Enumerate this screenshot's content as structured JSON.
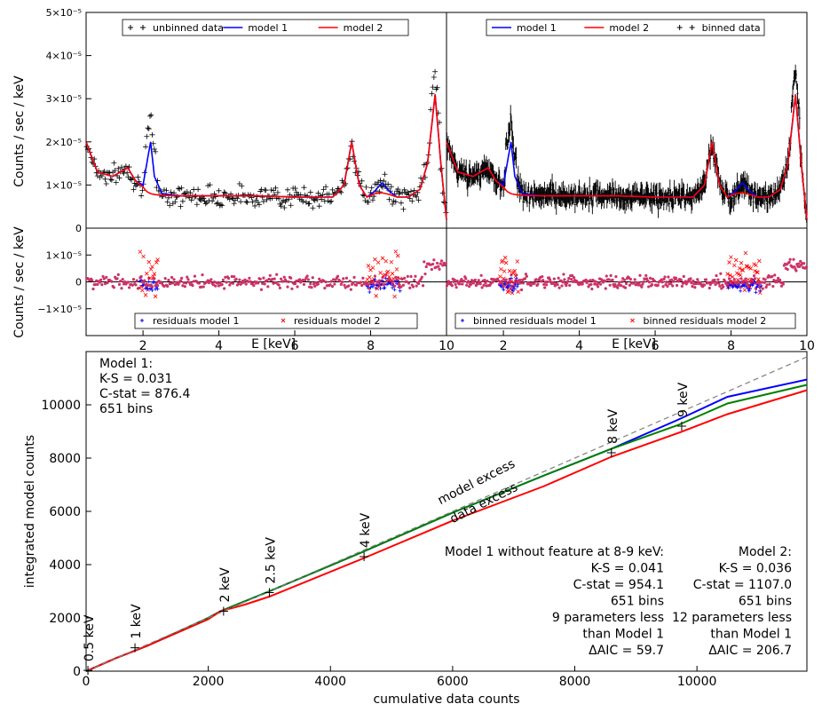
{
  "chart_data": [
    {
      "type": "line",
      "panel": "top-left spectrum (unbinned)",
      "ylabel": "Counts / sec / keV",
      "yticks": [
        "0",
        "1×10⁻⁵",
        "2×10⁻⁵",
        "3×10⁻⁵",
        "4×10⁻⁵",
        "5×10⁻⁵"
      ],
      "ylim": [
        0,
        5e-05
      ],
      "xlim": [
        0.5,
        10
      ],
      "legend": [
        "unbinned data",
        "model 1",
        "model 2"
      ],
      "series": [
        {
          "name": "model 1",
          "color": "#0000ff",
          "x": [
            0.5,
            0.8,
            1.2,
            1.6,
            1.8,
            2.0,
            2.1,
            2.2,
            2.3,
            2.5,
            3,
            4,
            5,
            6,
            7,
            7.3,
            7.5,
            7.7,
            7.9,
            8.1,
            8.3,
            8.5,
            8.7,
            9,
            9.3,
            9.5,
            9.7,
            9.85,
            10
          ],
          "y": [
            2e-05,
            1.3e-05,
            1.2e-05,
            1.4e-05,
            1.1e-05,
            1e-05,
            1.5e-05,
            2e-05,
            1.2e-05,
            8e-06,
            7.5e-06,
            7.5e-06,
            7.5e-06,
            7.2e-06,
            7.2e-06,
            1e-05,
            2e-05,
            1e-05,
            7.2e-06,
            8.5e-06,
            1.05e-05,
            8.5e-06,
            7.2e-06,
            7.2e-06,
            9e-06,
            1.5e-05,
            3.1e-05,
            1.5e-05,
            2e-06
          ]
        },
        {
          "name": "model 2",
          "color": "#ff0000",
          "x": [
            0.5,
            0.8,
            1.2,
            1.6,
            1.8,
            2.0,
            2.1,
            2.2,
            2.3,
            2.5,
            3,
            4,
            5,
            6,
            7,
            7.3,
            7.5,
            7.7,
            7.9,
            8.1,
            8.3,
            8.5,
            8.7,
            9,
            9.3,
            9.5,
            9.7,
            9.85,
            10
          ],
          "y": [
            2e-05,
            1.3e-05,
            1.2e-05,
            1.4e-05,
            1.1e-05,
            9.5e-06,
            8.5e-06,
            8e-06,
            7.8e-06,
            7.6e-06,
            7.5e-06,
            7.5e-06,
            7.5e-06,
            7.2e-06,
            7.2e-06,
            1e-05,
            2e-05,
            1e-05,
            7.2e-06,
            8e-06,
            8.2e-06,
            7.8e-06,
            7.2e-06,
            7.2e-06,
            9e-06,
            1.5e-05,
            3.1e-05,
            1.5e-05,
            2e-06
          ]
        }
      ]
    },
    {
      "type": "line",
      "panel": "top-right spectrum (binned)",
      "xlim": [
        0.5,
        10
      ],
      "legend": [
        "model 1",
        "model 2",
        "binned data"
      ]
    },
    {
      "type": "scatter",
      "panel": "bottom-left residuals",
      "ylabel": "Counts / sec / keV",
      "yticks": [
        "−1×10⁻⁵",
        "0",
        "1×10⁻⁵"
      ],
      "ylim": [
        -2e-05,
        2e-05
      ],
      "xlabel": "E [keV]",
      "xticks": [
        "2",
        "4",
        "6",
        "8",
        "10"
      ],
      "legend": [
        "residuals model 1",
        "residuals model 2"
      ]
    },
    {
      "type": "scatter",
      "panel": "bottom-right residuals (binned)",
      "xlabel": "E [keV]",
      "xticks": [
        "2",
        "4",
        "6",
        "8",
        "10"
      ],
      "legend": [
        "binned residuals model 1",
        "binned residuals model 2"
      ]
    },
    {
      "type": "line",
      "panel": "cumulative counts",
      "xlabel": "cumulative data counts",
      "ylabel": "integrated model counts",
      "xlim": [
        0,
        11800
      ],
      "ylim": [
        0,
        12000
      ],
      "xticks": [
        "0",
        "2000",
        "4000",
        "6000",
        "8000",
        "10000"
      ],
      "yticks": [
        "0",
        "2000",
        "4000",
        "6000",
        "8000",
        "10000"
      ],
      "series": [
        {
          "name": "Model 1",
          "color": "#0000ff",
          "x": [
            0,
            500,
            1000,
            2000,
            2200,
            3000,
            4500,
            6000,
            7500,
            8600,
            9700,
            10500,
            11800
          ],
          "y": [
            0,
            500,
            950,
            2000,
            2250,
            3000,
            4450,
            5950,
            7350,
            8350,
            9450,
            10300,
            10950
          ]
        },
        {
          "name": "Model 1 without feature at 8-9 keV",
          "color": "#008000",
          "x": [
            0,
            500,
            1000,
            2000,
            2200,
            3000,
            4500,
            6000,
            7500,
            8600,
            9700,
            10500,
            11800
          ],
          "y": [
            0,
            500,
            950,
            2000,
            2250,
            3000,
            4450,
            5950,
            7350,
            8350,
            9250,
            10050,
            10750
          ]
        },
        {
          "name": "Model 2",
          "color": "#ff0000",
          "x": [
            0,
            500,
            1000,
            2000,
            2200,
            2600,
            3000,
            4500,
            6000,
            7500,
            8600,
            9700,
            10500,
            11800
          ],
          "y": [
            0,
            500,
            950,
            1950,
            2250,
            2500,
            2800,
            4200,
            5650,
            6950,
            8050,
            8950,
            9650,
            10550
          ]
        },
        {
          "name": "equality",
          "color": "#808080",
          "x": [
            0,
            11800
          ],
          "y": [
            0,
            11800
          ]
        }
      ],
      "energy_marks": [
        {
          "label": "0.5 keV",
          "x": 30,
          "y": 30
        },
        {
          "label": "1 keV",
          "x": 800,
          "y": 880
        },
        {
          "label": "2 keV",
          "x": 2250,
          "y": 2250
        },
        {
          "label": "2.5 keV",
          "x": 3000,
          "y": 2950
        },
        {
          "label": "4 keV",
          "x": 4550,
          "y": 4300
        },
        {
          "label": "8 keV",
          "x": 8600,
          "y": 8200
        },
        {
          "label": "9 keV",
          "x": 9750,
          "y": 9200
        }
      ],
      "annotations": {
        "model_excess": "model excess",
        "data_excess": "data excess"
      }
    }
  ],
  "stats": {
    "model1": [
      "Model 1:",
      "K-S = 0.031",
      "C-stat = 876.4",
      "651 bins"
    ],
    "model1_nofeature": [
      "Model 1 without feature at 8-9 keV:",
      "K-S = 0.041",
      "C-stat = 954.1",
      "651 bins",
      "9 parameters less",
      "than Model 1",
      "ΔAIC = 59.7"
    ],
    "model2": [
      "Model 2:",
      "K-S = 0.036",
      "C-stat = 1107.0",
      "651 bins",
      "12 parameters less",
      "than Model 1",
      "ΔAIC = 206.7"
    ]
  },
  "colors": {
    "model1": "#0000ff",
    "model2": "#ff0000",
    "nofeature": "#008000",
    "data": "#000000",
    "resid2": "#cc3366"
  }
}
